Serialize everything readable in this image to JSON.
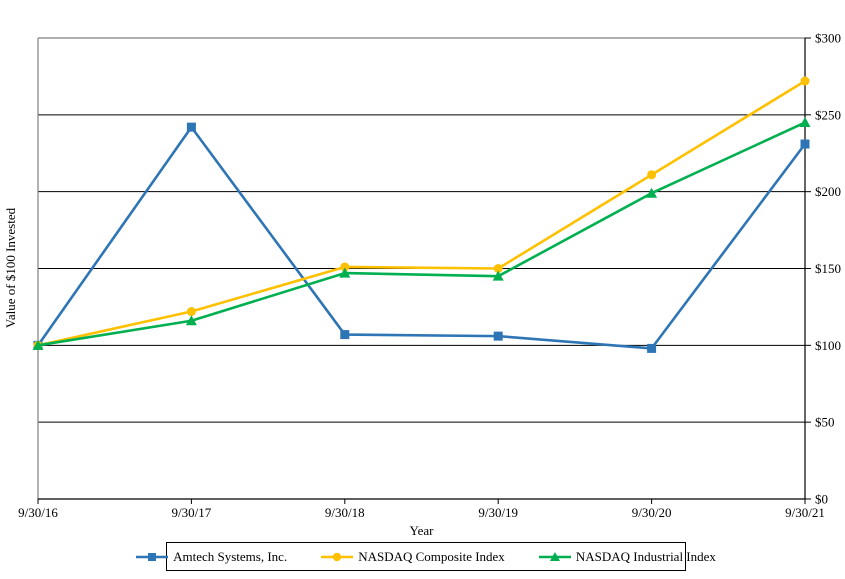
{
  "chart_data": {
    "type": "line",
    "title": "",
    "xlabel": "Year",
    "ylabel": "Value of $100 Invested",
    "categories": [
      "9/30/16",
      "9/30/17",
      "9/30/18",
      "9/30/19",
      "9/30/20",
      "9/30/21"
    ],
    "series": [
      {
        "name": "Amtech Systems, Inc.",
        "color": "#2E75B6",
        "marker": "square",
        "values": [
          100,
          242,
          107,
          106,
          98,
          231
        ]
      },
      {
        "name": "NASDAQ Composite Index",
        "color": "#FFC000",
        "marker": "circle",
        "values": [
          100,
          122,
          151,
          150,
          211,
          272
        ]
      },
      {
        "name": "NASDAQ Industrial Index",
        "color": "#00B050",
        "marker": "triangle",
        "values": [
          100,
          116,
          147,
          145,
          199,
          245
        ]
      }
    ],
    "ylim": [
      0,
      300
    ],
    "ytick_step": 50,
    "ytick_labels": [
      "$0",
      "$50",
      "$100",
      "$150",
      "$200",
      "$250",
      "$300"
    ],
    "grid": "horizontal",
    "legend_position": "bottom",
    "colors": {
      "grid_line": "#000000",
      "axis_line": "#000000",
      "plot_border": "#808080",
      "text": "#000000",
      "background": "#ffffff"
    }
  }
}
